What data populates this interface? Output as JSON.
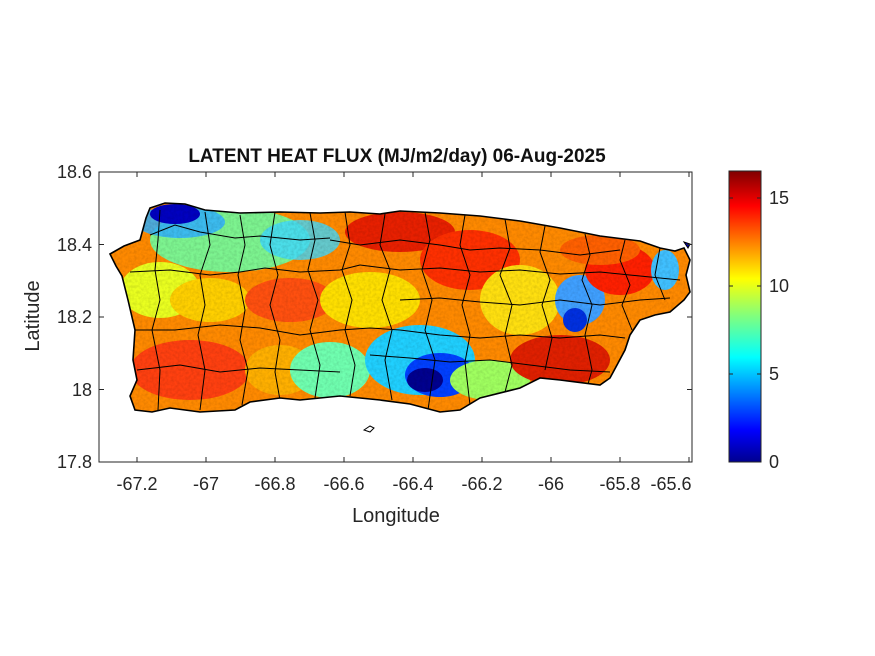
{
  "map": {
    "title": "LATENT HEAT FLUX (MJ/m2/day) 06-Aug-2025",
    "xlabel": "Longitude",
    "ylabel": "Latitude",
    "x_ticks": [
      "-67.2",
      "-67",
      "-66.8",
      "-66.6",
      "-66.4",
      "-66.2",
      "-66",
      "-65.8",
      "-65.6"
    ],
    "y_ticks": [
      "18.6",
      "18.4",
      "18.2",
      "18",
      "17.8"
    ],
    "xlim": [
      -67.3,
      -65.58
    ],
    "ylim": [
      17.8,
      18.6
    ],
    "region": "Puerto Rico",
    "boundaries": "municipality outlines",
    "colormap": "jet",
    "colorbar": {
      "ticks": [
        "15",
        "10",
        "5",
        "0"
      ],
      "range": [
        0,
        16.5
      ]
    },
    "colors": {
      "outline": "#000000",
      "ocean": "#ffffff",
      "low": "#00008f",
      "high": "#800000"
    }
  }
}
